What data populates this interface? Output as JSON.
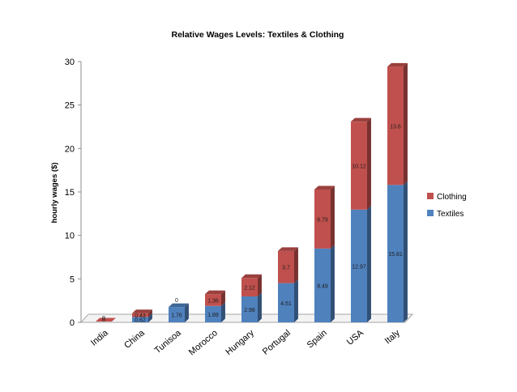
{
  "chart_data": {
    "type": "bar",
    "stacked": true,
    "three_d": true,
    "title": "Relative Wages Levels: Textiles & Clothing",
    "ylabel": "hourly wages ($)",
    "xlabel": "",
    "ylim": [
      0,
      30
    ],
    "yticks": [
      0,
      5,
      10,
      15,
      20,
      25,
      30
    ],
    "grid": false,
    "legend_position": "right",
    "categories": [
      "India",
      "China",
      "Tunisoa",
      "Morocco",
      "Hungary",
      "Portugal",
      "Spain",
      "USA",
      "Italy"
    ],
    "series": [
      {
        "name": "Textiles",
        "color": "#4f81bd",
        "values": [
          0,
          0.62,
          1.76,
          1.89,
          2.98,
          4.51,
          8.49,
          12.97,
          15.81
        ],
        "labels": [
          "0",
          "0.62",
          "1.76",
          "1.89",
          "2.98",
          "4.51",
          "8.49",
          "12.97",
          "15.81"
        ]
      },
      {
        "name": "Clothing",
        "color": "#c0504d",
        "values": [
          0,
          0.43,
          0,
          1.36,
          2.12,
          3.7,
          6.79,
          10.12,
          13.6
        ],
        "labels": [
          "0",
          "0.43",
          "0",
          "1.36",
          "2.12",
          "3.7",
          "6.79",
          "10.12",
          "13.6"
        ]
      }
    ],
    "legend": [
      "Clothing",
      "Textiles"
    ]
  }
}
